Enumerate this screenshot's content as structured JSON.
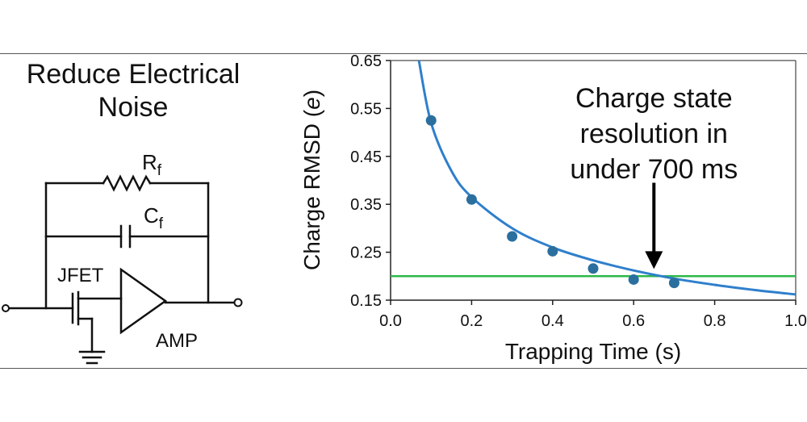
{
  "circuit": {
    "title_line1": "Reduce Electrical",
    "title_line2": "Noise",
    "rf_label": "R",
    "rf_sub": "f",
    "cf_label": "C",
    "cf_sub": "f",
    "jfet_label": "JFET",
    "amp_label": "AMP"
  },
  "chart_data": {
    "type": "scatter",
    "title": "",
    "xlabel": "Trapping Time (s)",
    "ylabel_prefix": "Charge RMSD (",
    "ylabel_unit": "e",
    "ylabel_suffix": ")",
    "xlim": [
      0.0,
      1.0
    ],
    "ylim": [
      0.15,
      0.65
    ],
    "xticks": [
      "0.0",
      "0.2",
      "0.4",
      "0.6",
      "0.8",
      "1.0"
    ],
    "yticks": [
      "0.15",
      "0.25",
      "0.35",
      "0.45",
      "0.55",
      "0.65"
    ],
    "grid": false,
    "points": {
      "x": [
        0.1,
        0.2,
        0.3,
        0.4,
        0.5,
        0.6,
        0.7
      ],
      "y": [
        0.525,
        0.36,
        0.283,
        0.252,
        0.216,
        0.193,
        0.186
      ],
      "color": "#2a6f9e"
    },
    "fit_curve": {
      "x": [
        0.07,
        0.1,
        0.15,
        0.2,
        0.3,
        0.4,
        0.5,
        0.6,
        0.7,
        0.8,
        0.9,
        1.0
      ],
      "y": [
        0.65,
        0.52,
        0.42,
        0.365,
        0.3,
        0.26,
        0.233,
        0.212,
        0.195,
        0.182,
        0.171,
        0.162
      ],
      "color": "#2f7fcc"
    },
    "threshold": {
      "y": 0.2,
      "color": "#2db84a"
    },
    "annotation": {
      "lines": [
        "Charge state",
        "resolution in",
        "under 700 ms"
      ],
      "arrow_x": 0.65,
      "arrow_from_y": 0.395,
      "arrow_to_y": 0.215
    }
  }
}
